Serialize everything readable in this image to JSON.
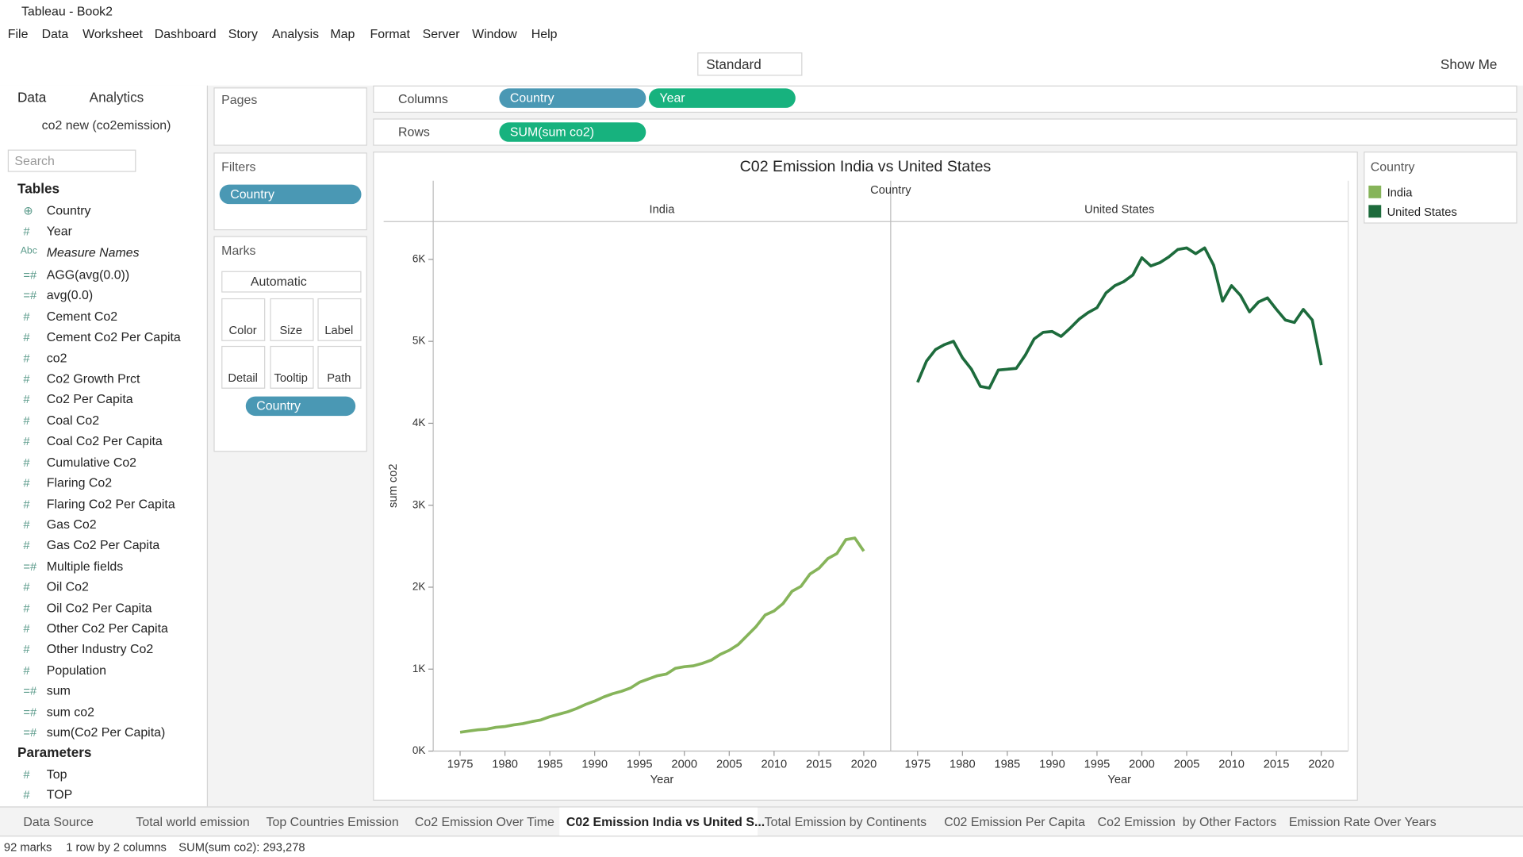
{
  "window": {
    "title": "Tableau - Book2"
  },
  "menu": [
    "File",
    "Data",
    "Worksheet",
    "Dashboard",
    "Story",
    "Analysis",
    "Map",
    "Format",
    "Server",
    "Window",
    "Help"
  ],
  "toolbar": {
    "fit": "Standard",
    "show_me": "Show Me"
  },
  "data_pane": {
    "tabs": [
      "Data",
      "Analytics"
    ],
    "source": "co2 new (co2emission)",
    "search": "Search",
    "tables_header": "Tables",
    "fields": [
      {
        "icon": "⊕",
        "name": "Country"
      },
      {
        "icon": "#",
        "name": "Year"
      },
      {
        "icon": "Abc",
        "name": "Measure Names"
      },
      {
        "icon": "=#",
        "name": "AGG(avg(0.0))"
      },
      {
        "icon": "=#",
        "name": "avg(0.0)"
      },
      {
        "icon": "#",
        "name": "Cement Co2"
      },
      {
        "icon": "#",
        "name": "Cement Co2 Per Capita"
      },
      {
        "icon": "#",
        "name": "co2"
      },
      {
        "icon": "#",
        "name": "Co2 Growth Prct"
      },
      {
        "icon": "#",
        "name": "Co2 Per Capita"
      },
      {
        "icon": "#",
        "name": "Coal Co2"
      },
      {
        "icon": "#",
        "name": "Coal Co2 Per Capita"
      },
      {
        "icon": "#",
        "name": "Cumulative Co2"
      },
      {
        "icon": "#",
        "name": "Flaring Co2"
      },
      {
        "icon": "#",
        "name": "Flaring Co2 Per Capita"
      },
      {
        "icon": "#",
        "name": "Gas Co2"
      },
      {
        "icon": "#",
        "name": "Gas Co2 Per Capita"
      },
      {
        "icon": "=#",
        "name": "Multiple fields"
      },
      {
        "icon": "#",
        "name": "Oil Co2"
      },
      {
        "icon": "#",
        "name": "Oil Co2 Per Capita"
      },
      {
        "icon": "#",
        "name": "Other Co2 Per Capita"
      },
      {
        "icon": "#",
        "name": "Other Industry Co2"
      },
      {
        "icon": "#",
        "name": "Population"
      },
      {
        "icon": "=#",
        "name": "sum"
      },
      {
        "icon": "=#",
        "name": "sum co2"
      },
      {
        "icon": "=#",
        "name": "sum(Co2 Per Capita)"
      }
    ],
    "parameters_header": "Parameters",
    "parameters": [
      {
        "icon": "#",
        "name": "Top"
      },
      {
        "icon": "#",
        "name": "TOP"
      }
    ]
  },
  "pages": {
    "label": "Pages"
  },
  "filters": {
    "label": "Filters",
    "pills": [
      "Country"
    ]
  },
  "marks": {
    "label": "Marks",
    "type": "Automatic",
    "buttons": [
      "Color",
      "Size",
      "Label",
      "Detail",
      "Tooltip",
      "Path"
    ],
    "pills": [
      "Country"
    ]
  },
  "shelves": {
    "columns": {
      "label": "Columns",
      "pills": [
        "Country",
        "Year"
      ]
    },
    "rows": {
      "label": "Rows",
      "pills": [
        "SUM(sum co2)"
      ]
    }
  },
  "legend": {
    "title": "Country"
  },
  "chart_data": {
    "type": "line",
    "title": "C02 Emission India vs United States",
    "column_header": "Country",
    "x_label": "Year",
    "y_label": "sum co2",
    "x": [
      1975,
      1976,
      1977,
      1978,
      1979,
      1980,
      1981,
      1982,
      1983,
      1984,
      1985,
      1986,
      1987,
      1988,
      1989,
      1990,
      1991,
      1992,
      1993,
      1994,
      1995,
      1996,
      1997,
      1998,
      1999,
      2000,
      2001,
      2002,
      2003,
      2004,
      2005,
      2006,
      2007,
      2008,
      2009,
      2010,
      2011,
      2012,
      2013,
      2014,
      2015,
      2016,
      2017,
      2018,
      2019,
      2020
    ],
    "series": [
      {
        "name": "India",
        "color": "#86b45a",
        "values": [
          230,
          245,
          260,
          268,
          290,
          300,
          320,
          335,
          360,
          380,
          420,
          450,
          480,
          520,
          570,
          610,
          660,
          700,
          730,
          770,
          840,
          880,
          920,
          940,
          1010,
          1030,
          1040,
          1070,
          1110,
          1180,
          1230,
          1300,
          1410,
          1520,
          1660,
          1710,
          1800,
          1950,
          2010,
          2160,
          2230,
          2350,
          2410,
          2580,
          2600,
          2440
        ]
      },
      {
        "name": "United States",
        "color": "#1d6b3c",
        "values": [
          4500,
          4760,
          4900,
          4960,
          5000,
          4800,
          4660,
          4450,
          4430,
          4650,
          4660,
          4670,
          4830,
          5030,
          5110,
          5120,
          5060,
          5160,
          5270,
          5350,
          5410,
          5590,
          5680,
          5730,
          5810,
          6020,
          5920,
          5960,
          6030,
          6120,
          6140,
          6070,
          6140,
          5930,
          5490,
          5680,
          5560,
          5360,
          5480,
          5530,
          5390,
          5260,
          5230,
          5390,
          5260,
          4710
        ]
      }
    ],
    "xlim": [
      1972,
      2023
    ],
    "xticks": [
      1975,
      1980,
      1985,
      1990,
      1995,
      2000,
      2005,
      2010,
      2015,
      2020
    ],
    "ylim": [
      0,
      6450
    ],
    "yticks": [
      {
        "value": 0,
        "label": "0K"
      },
      {
        "value": 1000,
        "label": "1K"
      },
      {
        "value": 2000,
        "label": "2K"
      },
      {
        "value": 3000,
        "label": "3K"
      },
      {
        "value": 4000,
        "label": "4K"
      },
      {
        "value": 5000,
        "label": "5K"
      },
      {
        "value": 6000,
        "label": "6K"
      }
    ],
    "grid": false
  },
  "tabs": {
    "items": [
      "Data Source",
      "Total world emission",
      "Top Countries Emission",
      "Co2 Emission Over Time",
      "C02 Emission India vs United S...",
      "Total Emission by Continents",
      "C02 Emission Per Capita",
      "Co2 Emission  by Other Factors",
      "Emission Rate Over Years"
    ],
    "active": 4
  },
  "status": [
    "92 marks",
    "1 row by 2 columns",
    "SUM(sum co2): 293,278"
  ]
}
